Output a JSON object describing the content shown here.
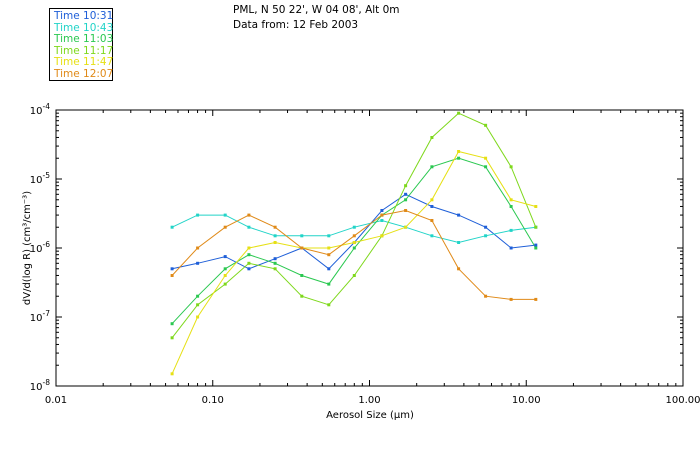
{
  "header": {
    "location": "PML, N 50 22', W 04 08', Alt 0m",
    "date": "Data from: 12 Feb 2003"
  },
  "legend": [
    {
      "label": "Time 10:31",
      "color": "#1f5fd8"
    },
    {
      "label": "Time 10:43",
      "color": "#22d4c8"
    },
    {
      "label": "Time 11:03",
      "color": "#2ac850"
    },
    {
      "label": "Time 11:17",
      "color": "#7ed81c"
    },
    {
      "label": "Time 11:47",
      "color": "#e6e014"
    },
    {
      "label": "Time 12:07",
      "color": "#e08a18"
    }
  ],
  "chart_data": {
    "type": "line",
    "xlabel": "Aerosol Size (μm)",
    "ylabel": "dV/d(log R) (cm³/cm⁻³)",
    "x_scale": "log",
    "y_scale": "log",
    "xlim": [
      0.01,
      100
    ],
    "ylim": [
      1e-08,
      0.0001
    ],
    "x_ticks": [
      "0.01",
      "0.10",
      "1.00",
      "10.00",
      "100.00"
    ],
    "y_tick_exponents": [
      -8,
      -7,
      -6,
      -5,
      -4
    ],
    "x": [
      0.055,
      0.08,
      0.12,
      0.17,
      0.25,
      0.37,
      0.55,
      0.8,
      1.2,
      1.7,
      2.5,
      3.7,
      5.5,
      8.0,
      11.5
    ],
    "series": [
      {
        "color": "#1f5fd8",
        "values": [
          5e-07,
          6e-07,
          7.5e-07,
          5e-07,
          7e-07,
          1e-06,
          5e-07,
          1.2e-06,
          3.5e-06,
          6e-06,
          4e-06,
          3e-06,
          2e-06,
          1e-06,
          1.1e-06
        ]
      },
      {
        "color": "#22d4c8",
        "values": [
          2e-06,
          3e-06,
          3e-06,
          2e-06,
          1.5e-06,
          1.5e-06,
          1.5e-06,
          2e-06,
          2.5e-06,
          2e-06,
          1.5e-06,
          1.2e-06,
          1.5e-06,
          1.8e-06,
          2e-06
        ]
      },
      {
        "color": "#2ac850",
        "values": [
          8e-08,
          2e-07,
          5e-07,
          8e-07,
          6e-07,
          4e-07,
          3e-07,
          1e-06,
          3e-06,
          5e-06,
          1.5e-05,
          2e-05,
          1.5e-05,
          4e-06,
          1e-06
        ]
      },
      {
        "color": "#7ed81c",
        "values": [
          5e-08,
          1.5e-07,
          3e-07,
          6e-07,
          5e-07,
          2e-07,
          1.5e-07,
          4e-07,
          1.5e-06,
          8e-06,
          4e-05,
          9e-05,
          6e-05,
          1.5e-05,
          2e-06
        ]
      },
      {
        "color": "#e6e014",
        "values": [
          1.5e-08,
          1e-07,
          4e-07,
          1e-06,
          1.2e-06,
          1e-06,
          1e-06,
          1.2e-06,
          1.5e-06,
          2e-06,
          5e-06,
          2.5e-05,
          2e-05,
          5e-06,
          4e-06
        ]
      },
      {
        "color": "#e08a18",
        "values": [
          4e-07,
          1e-06,
          2e-06,
          3e-06,
          2e-06,
          1e-06,
          8e-07,
          1.5e-06,
          3e-06,
          3.5e-06,
          2.5e-06,
          5e-07,
          2e-07,
          1.8e-07,
          1.8e-07
        ]
      }
    ]
  }
}
